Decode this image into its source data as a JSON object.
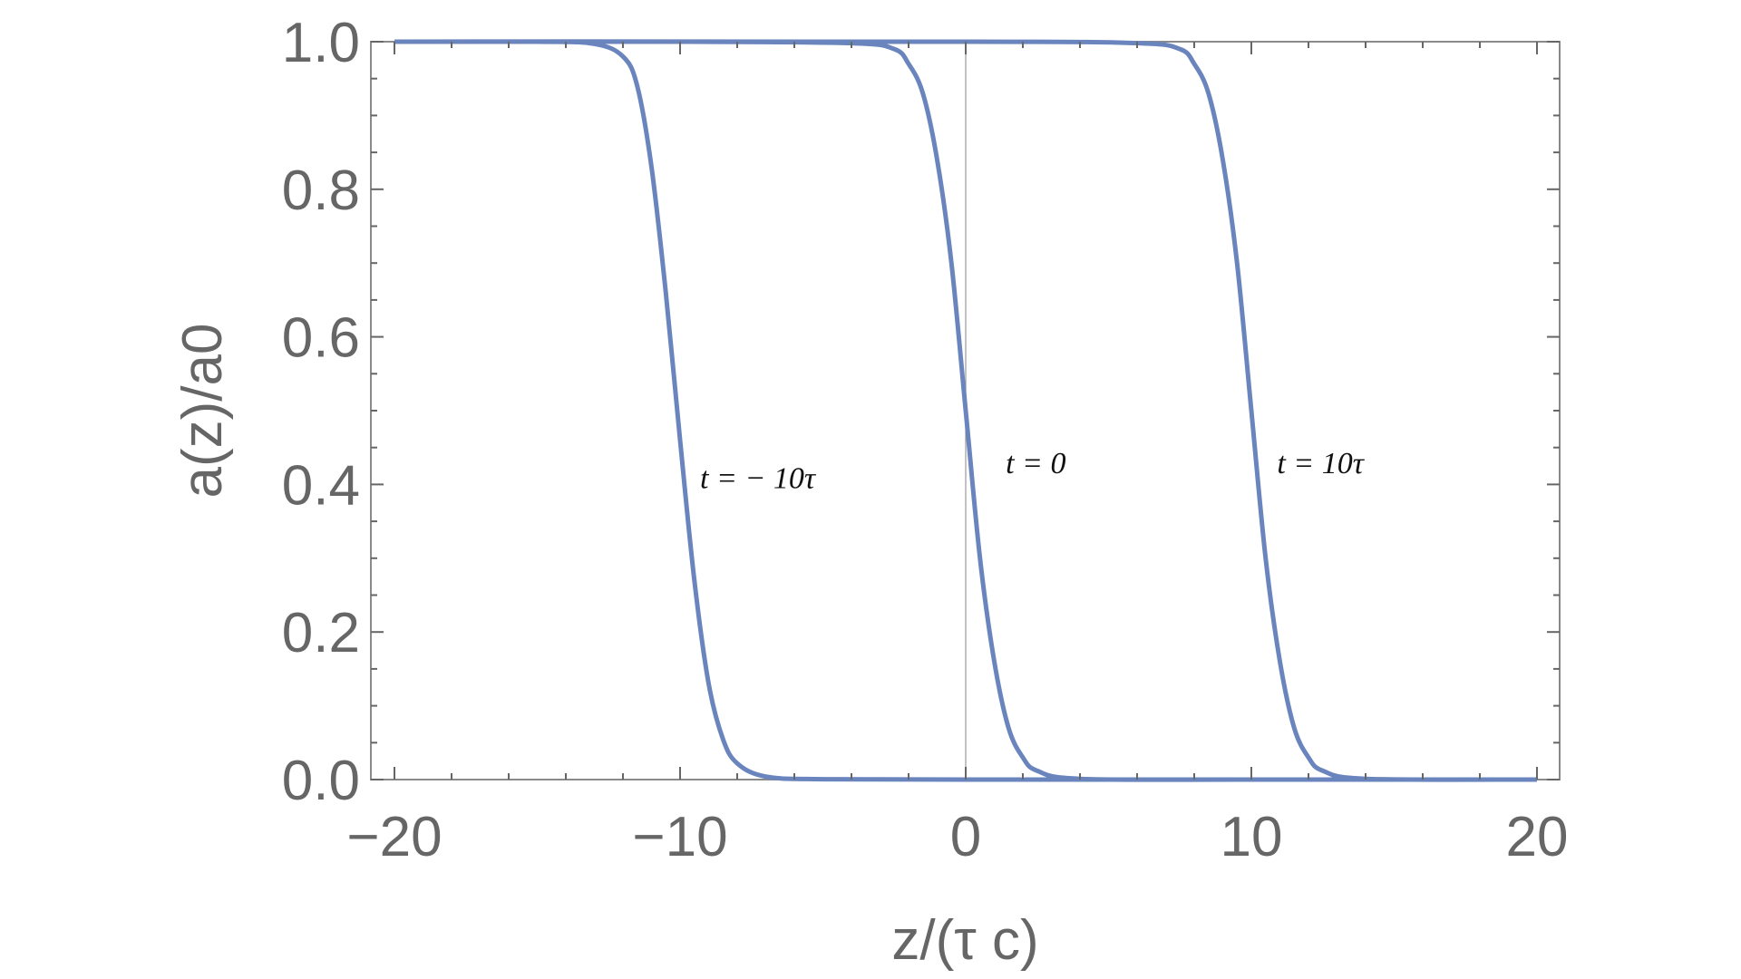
{
  "chart_data": {
    "type": "line",
    "title": "",
    "xlabel": "z/(τ c)",
    "ylabel": "a(z)/a0",
    "xlim": [
      -20,
      20
    ],
    "ylim": [
      0,
      1
    ],
    "x_ticks": [
      -20,
      -10,
      0,
      10,
      20
    ],
    "x_tick_labels": [
      "−20",
      "−10",
      "0",
      "10",
      "20"
    ],
    "y_ticks": [
      0.0,
      0.2,
      0.4,
      0.6,
      0.8,
      1.0
    ],
    "y_tick_labels": [
      "0.0",
      "0.2",
      "0.4",
      "0.6",
      "0.8",
      "1.0"
    ],
    "grid": false,
    "legend": "none",
    "vertical_reference_line_x": 0,
    "line_color": "#6a85bd",
    "series": [
      {
        "x": [
          -20,
          -15,
          -13,
          -12,
          -11.5,
          -11,
          -10.5,
          -10,
          -9.5,
          -9,
          -8.5,
          -8,
          -7,
          -5,
          0,
          10,
          20
        ],
        "values": [
          1.0,
          1.0,
          0.997,
          0.98,
          0.94,
          0.83,
          0.66,
          0.46,
          0.27,
          0.13,
          0.055,
          0.022,
          0.004,
          0.0005,
          0.0,
          0.0,
          0.0
        ]
      },
      {
        "x": [
          -20,
          -10,
          -4,
          -2.5,
          -2,
          -1.5,
          -1,
          -0.5,
          0,
          0.5,
          1,
          1.5,
          2,
          2.5,
          4,
          10,
          20
        ],
        "values": [
          1.0,
          1.0,
          0.998,
          0.99,
          0.97,
          0.93,
          0.84,
          0.7,
          0.5,
          0.3,
          0.16,
          0.07,
          0.03,
          0.012,
          0.001,
          0.0,
          0.0
        ]
      },
      {
        "x": [
          -20,
          0,
          6,
          7.5,
          8,
          8.5,
          9,
          9.5,
          10,
          10.5,
          11,
          11.5,
          12,
          12.5,
          14,
          20
        ],
        "values": [
          1.0,
          1.0,
          0.998,
          0.99,
          0.97,
          0.93,
          0.84,
          0.7,
          0.5,
          0.3,
          0.16,
          0.07,
          0.03,
          0.012,
          0.001,
          0.0
        ]
      }
    ],
    "annotations": [
      {
        "text": "t = − 10τ",
        "x": -9.3,
        "y": 0.41
      },
      {
        "text": "t = 0",
        "x": 1.4,
        "y": 0.43
      },
      {
        "text": "t = 10τ",
        "x": 10.9,
        "y": 0.43
      }
    ]
  }
}
